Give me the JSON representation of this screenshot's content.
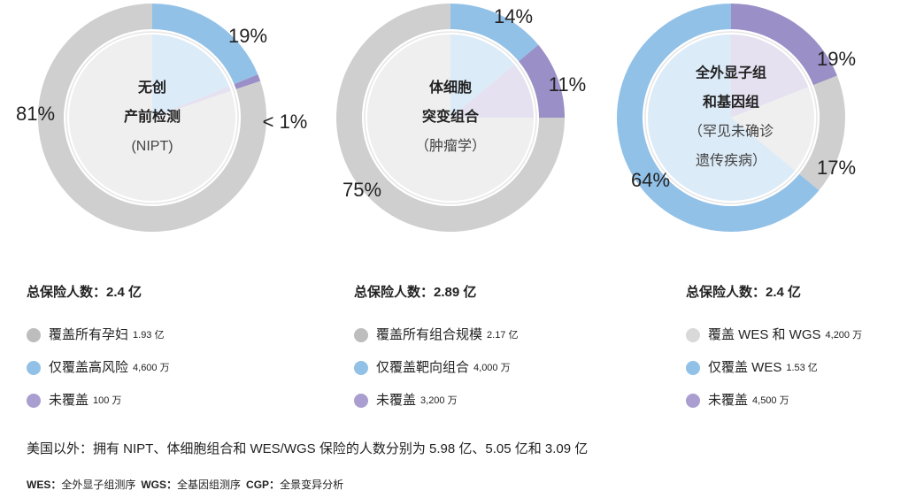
{
  "chart_data": [
    {
      "type": "pie",
      "center_label": {
        "bold": [
          "无创",
          "产前检测"
        ],
        "normal": [
          "(NIPT)"
        ]
      },
      "values": [
        19,
        1,
        81
      ],
      "value_labels": [
        "19%",
        "< 1%",
        "81%"
      ],
      "colors": [
        "#92c1e8",
        "#9a8fc6",
        "#cfcfcf"
      ],
      "inner_colors": [
        "#dcebf8",
        "#e5e1f0",
        "#efefef"
      ],
      "legend_title": "总保险人数：2.4 亿",
      "legend": [
        {
          "name": "覆盖所有孕妇",
          "amount": "1.93 亿",
          "color": "#bdbdbd"
        },
        {
          "name": "仅覆盖高风险",
          "amount": "4,600 万",
          "color": "#92c1e8"
        },
        {
          "name": "未覆盖",
          "amount": "100 万",
          "color": "#a99ecf"
        }
      ]
    },
    {
      "type": "pie",
      "center_label": {
        "bold": [
          "体细胞",
          "突变组合"
        ],
        "normal": [
          "（肿瘤学）"
        ]
      },
      "values": [
        14,
        11,
        75
      ],
      "value_labels": [
        "14%",
        "11%",
        "75%"
      ],
      "colors": [
        "#92c1e8",
        "#9a8fc6",
        "#cfcfcf"
      ],
      "inner_colors": [
        "#dcebf8",
        "#e5e1f0",
        "#efefef"
      ],
      "legend_title": "总保险人数：2.89 亿",
      "legend": [
        {
          "name": "覆盖所有组合规模",
          "amount": "2.17 亿",
          "color": "#bdbdbd"
        },
        {
          "name": "仅覆盖靶向组合",
          "amount": "4,000 万",
          "color": "#92c1e8"
        },
        {
          "name": "未覆盖",
          "amount": "3,200 万",
          "color": "#a99ecf"
        }
      ]
    },
    {
      "type": "pie",
      "center_label": {
        "bold": [
          "全外显子组",
          "和基因组"
        ],
        "normal": [
          "（罕见未确诊",
          "遗传疾病）"
        ]
      },
      "values": [
        19,
        17,
        64
      ],
      "value_labels": [
        "19%",
        "17%",
        "64%"
      ],
      "colors": [
        "#9a8fc6",
        "#cfcfcf",
        "#92c1e8"
      ],
      "inner_colors": [
        "#e5e1f0",
        "#efefef",
        "#dcebf8"
      ],
      "legend_title": "总保险人数：2.4 亿",
      "legend": [
        {
          "name": "覆盖 WES 和 WGS",
          "amount": "4,200 万",
          "color": "#d9d9d9"
        },
        {
          "name": "仅覆盖 WES",
          "amount": "1.53 亿",
          "color": "#92c1e8"
        },
        {
          "name": "未覆盖",
          "amount": "4,500 万",
          "color": "#a99ecf"
        }
      ]
    }
  ],
  "footnote": "美国以外：拥有 NIPT、体细胞组合和 WES/WGS 保险的人数分别为 5.98 亿、5.05 亿和 3.09 亿",
  "abbreviations": [
    {
      "term": "WES：",
      "definition": "全外显子组测序"
    },
    {
      "term": "WGS：",
      "definition": "全基因组测序"
    },
    {
      "term": "CGP：",
      "definition": "全景变异分析"
    }
  ]
}
